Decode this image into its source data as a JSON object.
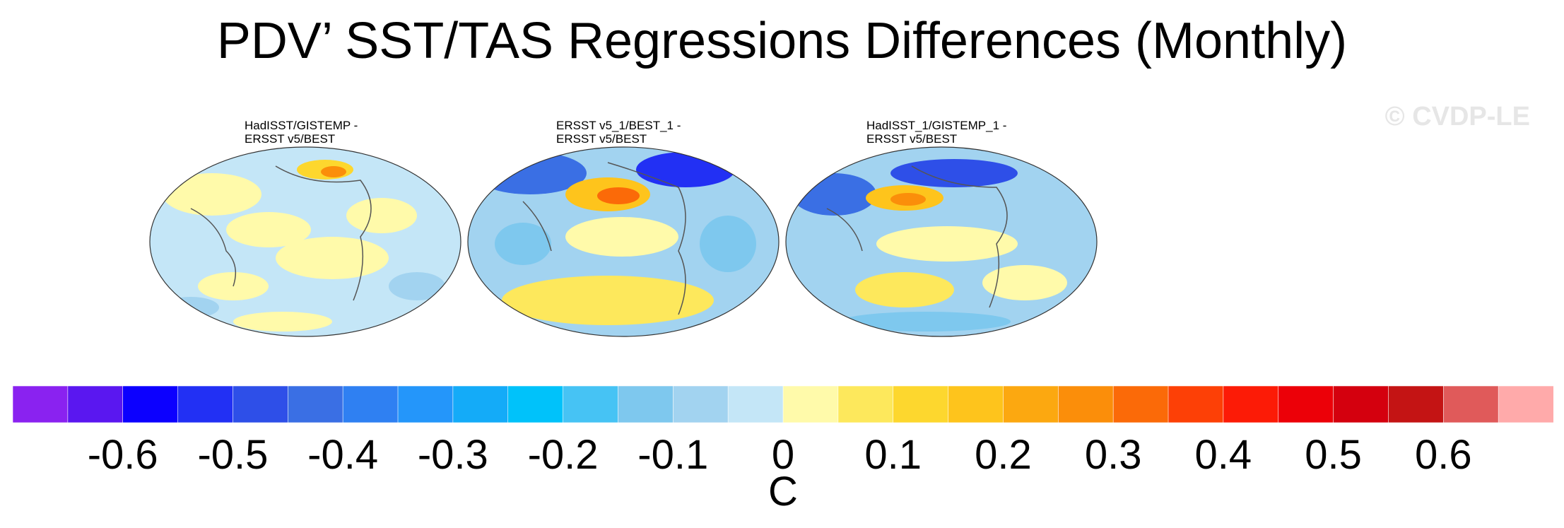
{
  "title": "PDV’ SST/TAS Regressions Differences (Monthly)",
  "watermark": "© CVDP-LE",
  "panels": [
    {
      "label_line1": "HadISST/GISTEMP -",
      "label_line2": "ERSST v5/BEST"
    },
    {
      "label_line1": "ERSST v5_1/BEST_1 -",
      "label_line2": "ERSST v5/BEST"
    },
    {
      "label_line1": "HadISST_1/GISTEMP_1 -",
      "label_line2": "ERSST v5/BEST"
    }
  ],
  "chart_data": {
    "type": "heatmap",
    "title": "PDV’ SST/TAS Regressions Differences (Monthly)",
    "colorbar": {
      "units": "C",
      "levels": [
        -0.65,
        -0.6,
        -0.55,
        -0.5,
        -0.45,
        -0.4,
        -0.35,
        -0.3,
        -0.25,
        -0.2,
        -0.15,
        -0.1,
        -0.05,
        0,
        0.05,
        0.1,
        0.15,
        0.2,
        0.25,
        0.3,
        0.35,
        0.4,
        0.45,
        0.5,
        0.55,
        0.6,
        0.65
      ],
      "tick_labels": [
        "-0.6",
        "-0.5",
        "-0.4",
        "-0.3",
        "-0.2",
        "-0.1",
        "0",
        "0.1",
        "0.2",
        "0.3",
        "0.4",
        "0.5",
        "0.6"
      ],
      "tick_values": [
        -0.6,
        -0.5,
        -0.4,
        -0.3,
        -0.2,
        -0.1,
        0,
        0.1,
        0.2,
        0.3,
        0.4,
        0.5,
        0.6
      ],
      "colors": [
        "#8a22f0",
        "#5a17f0",
        "#0c00ff",
        "#2230f4",
        "#2e4fe8",
        "#3a6fe4",
        "#2f80f2",
        "#2496fa",
        "#14abf8",
        "#00c2fa",
        "#46c3f4",
        "#7ec8ee",
        "#a2d3f0",
        "#c4e6f7",
        "#fffaaa",
        "#fde85c",
        "#fdd72e",
        "#fec41c",
        "#fca810",
        "#fb8e0a",
        "#fb6a08",
        "#fd4006",
        "#fc1b06",
        "#ec0008",
        "#d4000e",
        "#c41414",
        "#e05a5a",
        "#ffaaaa"
      ]
    }
  }
}
